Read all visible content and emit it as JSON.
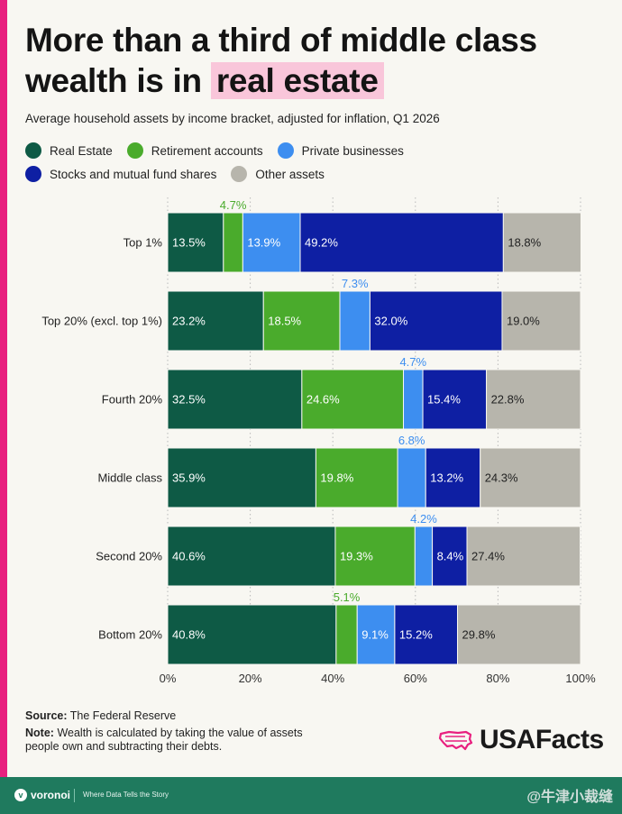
{
  "header": {
    "title_main": "More than a third of middle class wealth is in ",
    "title_highlight": "real estate",
    "subtitle": "Average household assets by income bracket, adjusted for inflation, Q1 2026"
  },
  "legend": [
    {
      "name": "Real Estate",
      "color": "#0e5a45"
    },
    {
      "name": "Retirement accounts",
      "color": "#4aab2c"
    },
    {
      "name": "Private businesses",
      "color": "#3d8ef0"
    },
    {
      "name": "Stocks and mutual fund shares",
      "color": "#0e1fa3"
    },
    {
      "name": "Other assets",
      "color": "#b7b5ac"
    }
  ],
  "chart_data": {
    "type": "bar",
    "orientation": "horizontal",
    "stacked": true,
    "title": "More than a third of middle class wealth is in real estate",
    "subtitle": "Average household assets by income bracket, adjusted for inflation, Q1 2026",
    "categories": [
      "Top 1%",
      "Top 20% (excl. top 1%)",
      "Fourth 20%",
      "Middle class",
      "Second 20%",
      "Bottom 20%"
    ],
    "series": [
      {
        "name": "Real Estate",
        "color": "#0e5a45",
        "labels": [
          "13.5%",
          "23.2%",
          "32.5%",
          "35.9%",
          "40.6%",
          "40.8%"
        ],
        "values": [
          13.5,
          23.2,
          32.5,
          35.9,
          40.6,
          40.8
        ]
      },
      {
        "name": "Retirement accounts",
        "color": "#4aab2c",
        "labels": [
          "4.7%",
          "18.5%",
          "24.6%",
          "19.8%",
          "19.3%",
          "5.1%"
        ],
        "values": [
          4.7,
          18.5,
          24.6,
          19.8,
          19.3,
          5.1
        ]
      },
      {
        "name": "Private businesses",
        "color": "#3d8ef0",
        "labels": [
          "13.9%",
          "7.3%",
          "4.7%",
          "6.8%",
          "4.2%",
          "9.1%"
        ],
        "values": [
          13.9,
          7.3,
          4.7,
          6.8,
          4.2,
          9.1
        ]
      },
      {
        "name": "Stocks and mutual fund shares",
        "color": "#0e1fa3",
        "labels": [
          "49.2%",
          "32.0%",
          "15.4%",
          "13.2%",
          "8.4%",
          "15.2%"
        ],
        "values": [
          49.2,
          32.0,
          15.4,
          13.2,
          8.4,
          15.2
        ]
      },
      {
        "name": "Other assets",
        "color": "#b7b5ac",
        "labels": [
          "18.8%",
          "19.0%",
          "22.8%",
          "24.3%",
          "27.4%",
          "29.8%"
        ],
        "values": [
          18.8,
          19.0,
          22.8,
          24.3,
          27.4,
          29.8
        ]
      }
    ],
    "xlim": [
      0,
      100
    ],
    "x_ticks": [
      "0%",
      "20%",
      "40%",
      "60%",
      "80%",
      "100%"
    ],
    "grid": true,
    "legend_position": "top"
  },
  "footer": {
    "source_label": "Source:",
    "source": "The Federal Reserve",
    "note_label": "Note:",
    "note": "Wealth is calculated by taking the value of assets people own and subtracting their debts.",
    "brand": "USAFacts",
    "voronoi": "voronoi",
    "tagline": "Where Data Tells the Story",
    "watermark": "@牛津小裁缝"
  }
}
